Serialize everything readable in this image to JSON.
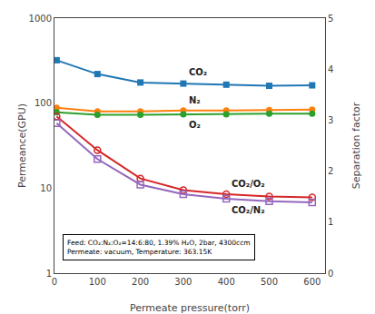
{
  "chart_data": {
    "type": "line",
    "xlabel": "Permeate pressure(torr)",
    "ylabel": "Permeance(GPU)",
    "y2label": "Separation factor",
    "x": [
      5,
      100,
      200,
      300,
      400,
      500,
      600
    ],
    "series": [
      {
        "name": "CO₂",
        "marker": "square",
        "values": [
          320,
          220,
          175,
          170,
          165,
          160,
          162
        ]
      },
      {
        "name": "N₂",
        "marker": "circle",
        "values": [
          88,
          80,
          80,
          82,
          82,
          83,
          84
        ]
      },
      {
        "name": "O₂",
        "marker": "circle",
        "values": [
          78,
          73,
          73,
          74,
          74,
          75,
          75
        ]
      },
      {
        "name": "CO₂/O₂",
        "marker": "circle-open",
        "values": [
          70,
          28,
          13,
          9.5,
          8.5,
          8.0,
          7.8
        ]
      },
      {
        "name": "CO₂/N₂",
        "marker": "square-open",
        "values": [
          58,
          22,
          11,
          8.5,
          7.5,
          7.0,
          6.8
        ]
      }
    ],
    "xlim": [
      0,
      630
    ],
    "xticks": [
      0,
      100,
      200,
      300,
      400,
      500,
      600
    ],
    "ylim": [
      1,
      1000
    ],
    "yticks": [
      1,
      10,
      100,
      1000
    ],
    "log": "y",
    "y2lim": [
      0,
      5
    ],
    "y2ticks": [
      0,
      1,
      2,
      3,
      4,
      5
    ],
    "grid": false,
    "annotation": "Feed: CO₂:N₂:O₂=14:6:80, 1.39% H₂O, 2bar, 4300ccm\nPermeate: vacuum, Temperature: 363.15K"
  }
}
